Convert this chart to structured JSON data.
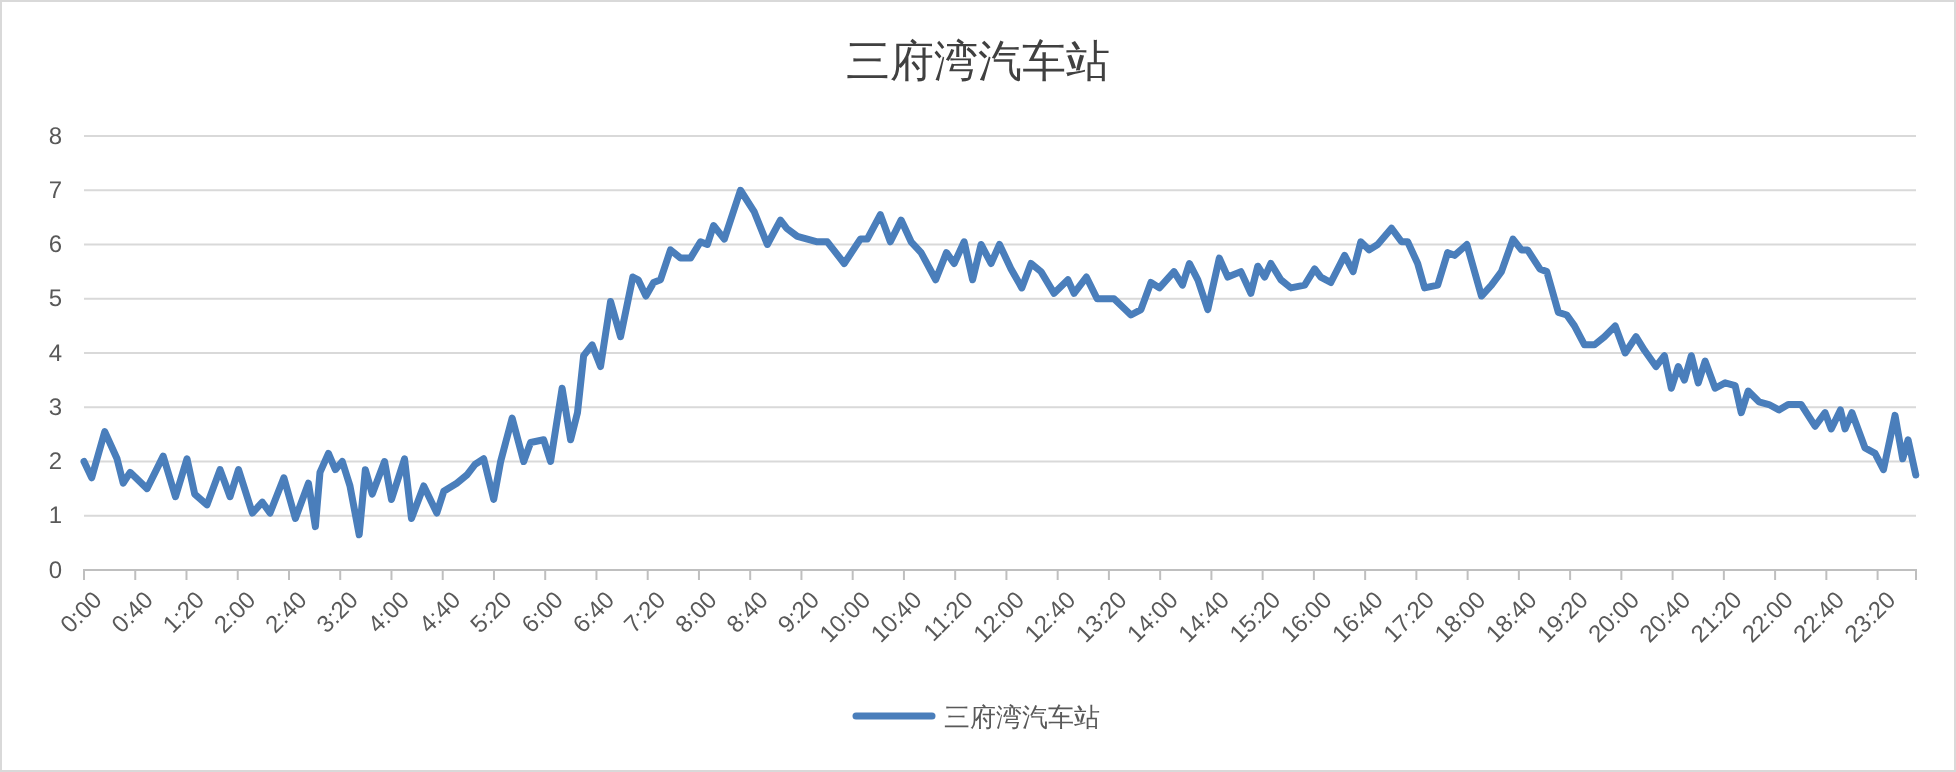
{
  "chart_data": {
    "type": "line",
    "title": "三府湾汽车站",
    "x": [
      0,
      0.1,
      0.27,
      0.43,
      0.51,
      0.6,
      0.82,
      1.03,
      1.19,
      1.34,
      1.44,
      1.6,
      1.77,
      1.9,
      2.01,
      2.19,
      2.32,
      2.42,
      2.6,
      2.75,
      2.92,
      3.01,
      3.07,
      3.18,
      3.27,
      3.36,
      3.46,
      3.58,
      3.66,
      3.75,
      3.91,
      4.0,
      4.17,
      4.26,
      4.42,
      4.59,
      4.68,
      4.85,
      4.98,
      5.09,
      5.2,
      5.33,
      5.42,
      5.57,
      5.72,
      5.81,
      5.98,
      6.07,
      6.22,
      6.33,
      6.42,
      6.5,
      6.61,
      6.72,
      6.85,
      6.98,
      7.14,
      7.21,
      7.31,
      7.41,
      7.5,
      7.63,
      7.76,
      7.89,
      8.02,
      8.11,
      8.19,
      8.33,
      8.54,
      8.72,
      8.89,
      9.06,
      9.14,
      9.28,
      9.41,
      9.54,
      9.67,
      9.89,
      10.1,
      10.19,
      10.36,
      10.49,
      10.63,
      10.76,
      10.89,
      11.08,
      11.22,
      11.32,
      11.45,
      11.56,
      11.67,
      11.8,
      11.91,
      12.06,
      12.2,
      12.32,
      12.45,
      12.62,
      12.8,
      12.88,
      13.04,
      13.18,
      13.4,
      13.62,
      13.75,
      13.88,
      13.99,
      14.18,
      14.29,
      14.38,
      14.49,
      14.62,
      14.77,
      14.88,
      15.05,
      15.18,
      15.27,
      15.36,
      15.44,
      15.57,
      15.7,
      15.88,
      16.01,
      16.09,
      16.22,
      16.4,
      16.51,
      16.61,
      16.72,
      16.83,
      17.01,
      17.14,
      17.22,
      17.35,
      17.44,
      17.61,
      17.74,
      17.83,
      17.99,
      18.18,
      18.31,
      18.44,
      18.59,
      18.7,
      18.78,
      18.94,
      19.03,
      19.18,
      19.29,
      19.39,
      19.52,
      19.65,
      19.78,
      19.92,
      20.05,
      20.19,
      20.3,
      20.45,
      20.56,
      20.65,
      20.74,
      20.82,
      20.91,
      21.0,
      21.09,
      21.22,
      21.35,
      21.48,
      21.56,
      21.65,
      21.79,
      21.92,
      22.05,
      22.17,
      22.34,
      22.52,
      22.65,
      22.73,
      22.85,
      22.91,
      23.0,
      23.17,
      23.3,
      23.41,
      23.56,
      23.66,
      23.73,
      23.83
    ],
    "series": [
      {
        "name": "三府湾汽车站",
        "color": "#4a7ebb",
        "values": [
          2.0,
          1.7,
          2.55,
          2.05,
          1.6,
          1.8,
          1.5,
          2.1,
          1.35,
          2.05,
          1.4,
          1.2,
          1.85,
          1.35,
          1.85,
          1.05,
          1.25,
          1.05,
          1.7,
          0.95,
          1.6,
          0.8,
          1.8,
          2.15,
          1.85,
          2.0,
          1.55,
          0.65,
          1.85,
          1.4,
          2.0,
          1.3,
          2.05,
          0.95,
          1.55,
          1.05,
          1.45,
          1.6,
          1.75,
          1.95,
          2.05,
          1.3,
          2.0,
          2.8,
          2.0,
          2.35,
          2.4,
          2.0,
          3.35,
          2.4,
          2.9,
          3.95,
          4.15,
          3.75,
          4.95,
          4.3,
          5.4,
          5.35,
          5.05,
          5.3,
          5.35,
          5.9,
          5.75,
          5.75,
          6.05,
          6.0,
          6.35,
          6.1,
          7.0,
          6.6,
          6.0,
          6.45,
          6.3,
          6.15,
          6.1,
          6.05,
          6.05,
          5.65,
          6.1,
          6.1,
          6.55,
          6.05,
          6.45,
          6.05,
          5.85,
          5.35,
          5.85,
          5.65,
          6.05,
          5.35,
          6.0,
          5.65,
          6.0,
          5.55,
          5.2,
          5.65,
          5.5,
          5.1,
          5.35,
          5.1,
          5.4,
          5.0,
          5.0,
          4.7,
          4.8,
          5.3,
          5.2,
          5.5,
          5.25,
          5.65,
          5.35,
          4.8,
          5.75,
          5.4,
          5.5,
          5.1,
          5.6,
          5.4,
          5.65,
          5.35,
          5.2,
          5.25,
          5.55,
          5.4,
          5.3,
          5.8,
          5.5,
          6.05,
          5.9,
          6.0,
          6.3,
          6.05,
          6.05,
          5.65,
          5.2,
          5.25,
          5.85,
          5.8,
          6.0,
          5.05,
          5.25,
          5.5,
          6.1,
          5.9,
          5.9,
          5.55,
          5.5,
          4.75,
          4.7,
          4.5,
          4.15,
          4.15,
          4.3,
          4.5,
          4.0,
          4.3,
          4.05,
          3.75,
          3.95,
          3.35,
          3.75,
          3.5,
          3.95,
          3.45,
          3.85,
          3.35,
          3.45,
          3.4,
          2.9,
          3.3,
          3.1,
          3.05,
          2.95,
          3.05,
          3.05,
          2.65,
          2.9,
          2.6,
          2.95,
          2.6,
          2.9,
          2.25,
          2.15,
          1.85,
          2.85,
          2.05,
          2.4,
          1.75
        ]
      }
    ],
    "xlim": [
      0,
      23.833
    ],
    "xticks": [
      {
        "value": 0,
        "label": "0:00"
      },
      {
        "value": 0.6667,
        "label": "0:40"
      },
      {
        "value": 1.3333,
        "label": "1:20"
      },
      {
        "value": 2,
        "label": "2:00"
      },
      {
        "value": 2.6667,
        "label": "2:40"
      },
      {
        "value": 3.3333,
        "label": "3:20"
      },
      {
        "value": 4,
        "label": "4:00"
      },
      {
        "value": 4.6667,
        "label": "4:40"
      },
      {
        "value": 5.3333,
        "label": "5:20"
      },
      {
        "value": 6,
        "label": "6:00"
      },
      {
        "value": 6.6667,
        "label": "6:40"
      },
      {
        "value": 7.3333,
        "label": "7:20"
      },
      {
        "value": 8,
        "label": "8:00"
      },
      {
        "value": 8.6667,
        "label": "8:40"
      },
      {
        "value": 9.3333,
        "label": "9:20"
      },
      {
        "value": 10,
        "label": "10:00"
      },
      {
        "value": 10.6667,
        "label": "10:40"
      },
      {
        "value": 11.3333,
        "label": "11:20"
      },
      {
        "value": 12,
        "label": "12:00"
      },
      {
        "value": 12.6667,
        "label": "12:40"
      },
      {
        "value": 13.3333,
        "label": "13:20"
      },
      {
        "value": 14,
        "label": "14:00"
      },
      {
        "value": 14.6667,
        "label": "14:40"
      },
      {
        "value": 15.3333,
        "label": "15:20"
      },
      {
        "value": 16,
        "label": "16:00"
      },
      {
        "value": 16.6667,
        "label": "16:40"
      },
      {
        "value": 17.3333,
        "label": "17:20"
      },
      {
        "value": 18,
        "label": "18:00"
      },
      {
        "value": 18.6667,
        "label": "18:40"
      },
      {
        "value": 19.3333,
        "label": "19:20"
      },
      {
        "value": 20,
        "label": "20:00"
      },
      {
        "value": 20.6667,
        "label": "20:40"
      },
      {
        "value": 21.3333,
        "label": "21:20"
      },
      {
        "value": 22,
        "label": "22:00"
      },
      {
        "value": 22.6667,
        "label": "22:40"
      },
      {
        "value": 23.3333,
        "label": "23:20"
      }
    ],
    "ylim": [
      0,
      8
    ],
    "yticks": [
      0,
      1,
      2,
      3,
      4,
      5,
      6,
      7,
      8
    ],
    "grid": "y",
    "legend": "bottom",
    "marker": "none",
    "line_style": "solid"
  }
}
